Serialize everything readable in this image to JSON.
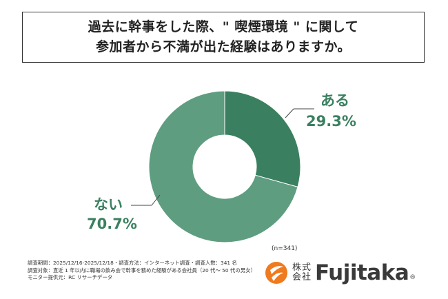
{
  "title": {
    "line1": "過去に幹事をした際、\" 喫煙環境 \" に関して",
    "line2": "参加者から不満が出た経験はありますか。"
  },
  "chart_data": {
    "type": "pie",
    "donut": true,
    "slices": [
      {
        "label": "ある",
        "value": 29.3,
        "value_label": "29.3%",
        "color": "#3a8060"
      },
      {
        "label": "ない",
        "value": 70.7,
        "value_label": "70.7%",
        "color": "#5f9d80"
      }
    ],
    "note": "(n=341)"
  },
  "footnote": {
    "line1": "調査期間：2025/12/16-2025/12/18・調査方法：インターネット調査・調査人数：341 名",
    "line2": "調査対象：直近 1 年以内に職場の飲み会で幹事を務めた経験がある会社員（20 代〜 50 代の男女）",
    "line3": "モニター提供元：RC リサーチデータ"
  },
  "logo": {
    "kanji_top": "株式",
    "kanji_bottom": "会社",
    "wordmark": "Fujitaka",
    "registered": "®",
    "icon": "fujitaka-flame-icon",
    "icon_color": "#f07a1e"
  }
}
